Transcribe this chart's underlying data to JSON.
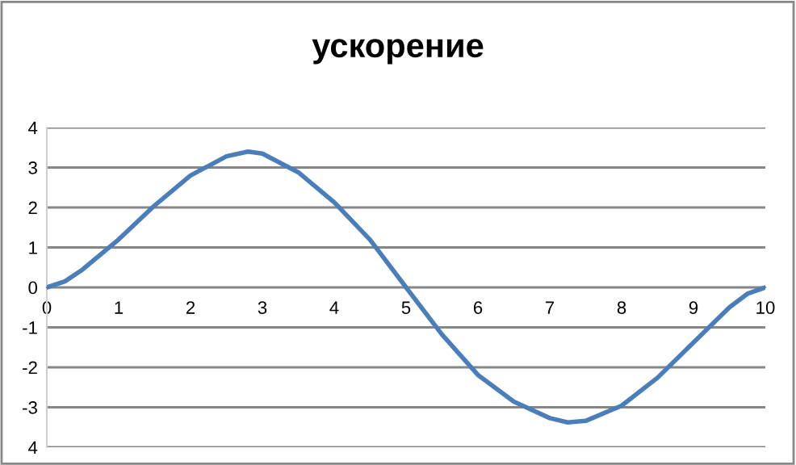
{
  "chart_data": {
    "type": "line",
    "title": "ускорение",
    "x": [
      0,
      0.25,
      0.5,
      1,
      1.5,
      2,
      2.5,
      2.8,
      3,
      3.5,
      4,
      4.5,
      5,
      5.5,
      6,
      6.5,
      7,
      7.25,
      7.5,
      8,
      8.5,
      9,
      9.5,
      9.75,
      10
    ],
    "series": [
      {
        "color": "#4a7ebb",
        "values": [
          0,
          0.15,
          0.45,
          1.2,
          2.05,
          2.8,
          3.28,
          3.4,
          3.35,
          2.88,
          2.13,
          1.19,
          0,
          -1.18,
          -2.19,
          -2.86,
          -3.27,
          -3.38,
          -3.34,
          -2.96,
          -2.26,
          -1.38,
          -0.5,
          -0.16,
          0
        ]
      }
    ],
    "xlim": [
      0,
      10
    ],
    "xticks": [
      0,
      1,
      2,
      3,
      4,
      5,
      6,
      7,
      8,
      9,
      10
    ],
    "ylim": [
      -4,
      4
    ],
    "yticks": [
      {
        "value": -4,
        "label": "4"
      },
      -3,
      -2,
      -1,
      0,
      1,
      2,
      3,
      4
    ],
    "grid": "y",
    "marker": "none",
    "line_style": "solid"
  }
}
